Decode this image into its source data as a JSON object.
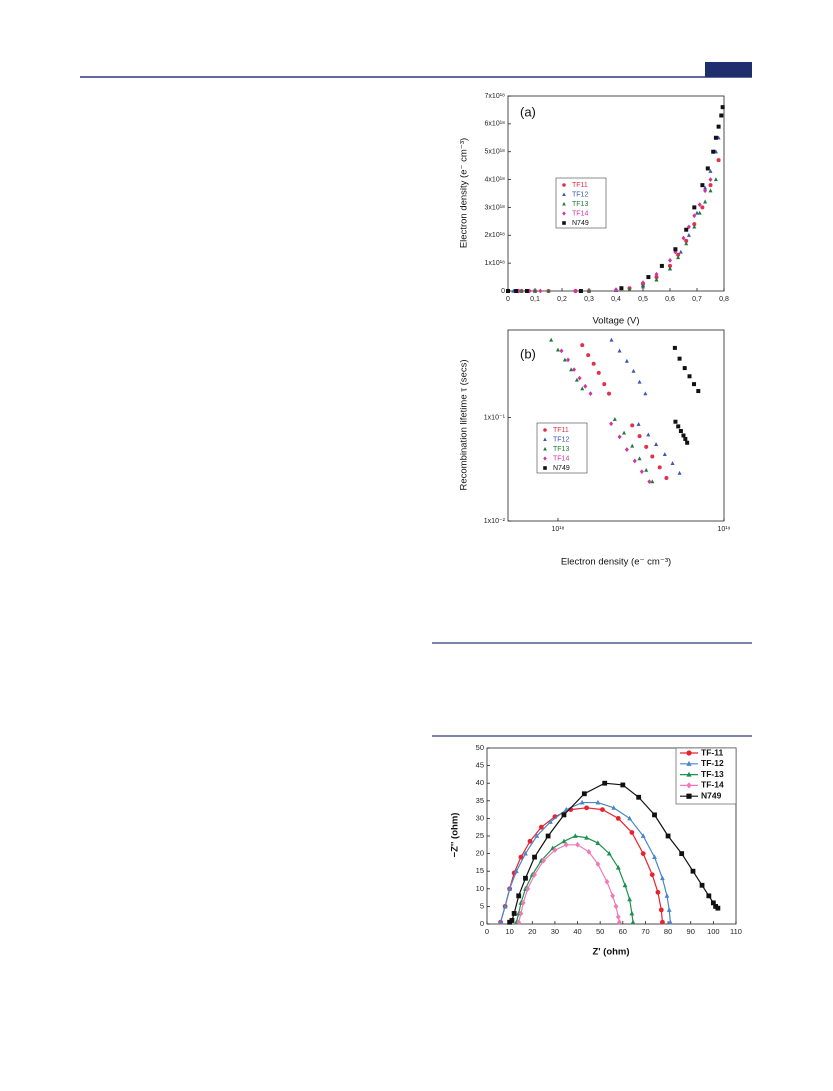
{
  "chart_data": [
    {
      "type": "scatter",
      "title": "(a)",
      "x_label": "Voltage (V)",
      "y_label": "Electron density (e⁻ cm⁻³)",
      "xlim": [
        0,
        0.8
      ],
      "ylim": [
        0,
        7e+18
      ],
      "xticks": [
        0,
        {
          "value": 0.1,
          "label": "0,1"
        },
        {
          "value": 0.2,
          "label": "0,2"
        },
        {
          "value": 0.3,
          "label": "0,3"
        },
        {
          "value": 0.4,
          "label": "0,4"
        },
        {
          "value": 0.5,
          "label": "0,5"
        },
        {
          "value": 0.6,
          "label": "0,6"
        },
        {
          "value": 0.7,
          "label": "0,7"
        },
        {
          "value": 0.8,
          "label": "0,8"
        }
      ],
      "yticks": [
        0,
        {
          "value": 1e+18,
          "label": "1x10¹⁸"
        },
        {
          "value": 2e+18,
          "label": "2x10¹⁸"
        },
        {
          "value": 3e+18,
          "label": "3x10¹⁸"
        },
        {
          "value": 4e+18,
          "label": "4x10¹⁸"
        },
        {
          "value": 5e+18,
          "label": "5x10¹⁸"
        },
        {
          "value": 6e+18,
          "label": "6x10¹⁸"
        },
        {
          "value": 7e+18,
          "label": "7x10¹⁸"
        }
      ],
      "series": [
        {
          "name": "TF11",
          "color": "#e0304a",
          "marker": "circle",
          "x": [
            0,
            0.05,
            0.1,
            0.15,
            0.25,
            0.3,
            0.45,
            0.5,
            0.55,
            0.6,
            0.63,
            0.66,
            0.69,
            0.72,
            0.75,
            0.78
          ],
          "values": [
            0,
            0,
            0,
            0,
            0,
            0,
            1e+17,
            2.5e+17,
            5e+17,
            9e+17,
            1.3e+18,
            1.8e+18,
            2.4e+18,
            3e+18,
            3.8e+18,
            4.7e+18
          ]
        },
        {
          "name": "TF12",
          "color": "#3a55b5",
          "marker": "triangle",
          "x": [
            0,
            0.02,
            0.05,
            0.1,
            0.3,
            0.4,
            0.5,
            0.55,
            0.6,
            0.64,
            0.67,
            0.7,
            0.73,
            0.75,
            0.77,
            0.78
          ],
          "values": [
            0,
            0,
            0,
            0,
            0,
            2e+16,
            1.5e+17,
            4e+17,
            8e+17,
            1.4e+18,
            2e+18,
            2.8e+18,
            3.7e+18,
            4.3e+18,
            5e+18,
            5.5e+18
          ]
        },
        {
          "name": "TF13",
          "color": "#1f7a3a",
          "marker": "triangle",
          "x": [
            0,
            0.05,
            0.1,
            0.15,
            0.3,
            0.45,
            0.5,
            0.55,
            0.6,
            0.63,
            0.66,
            0.69,
            0.71,
            0.73,
            0.75,
            0.77
          ],
          "values": [
            0,
            0,
            0,
            0,
            0,
            5e+16,
            2e+17,
            4e+17,
            8e+17,
            1.2e+18,
            1.7e+18,
            2.3e+18,
            2.8e+18,
            3.2e+18,
            3.6e+18,
            4e+18
          ]
        },
        {
          "name": "TF14",
          "color": "#d0359e",
          "marker": "diamond",
          "x": [
            0,
            0.04,
            0.08,
            0.12,
            0.25,
            0.4,
            0.5,
            0.55,
            0.6,
            0.62,
            0.65,
            0.67,
            0.69,
            0.71,
            0.73,
            0.75
          ],
          "values": [
            0,
            0,
            0,
            0,
            0,
            5e+16,
            3e+17,
            6e+17,
            1.1e+18,
            1.4e+18,
            1.9e+18,
            2.3e+18,
            2.7e+18,
            3.1e+18,
            3.6e+18,
            4e+18
          ]
        },
        {
          "name": "N749",
          "color": "#111111",
          "marker": "square",
          "x": [
            0,
            0.03,
            0.07,
            0.27,
            0.42,
            0.52,
            0.57,
            0.62,
            0.66,
            0.69,
            0.72,
            0.74,
            0.76,
            0.77,
            0.78,
            0.79,
            0.795
          ],
          "values": [
            0,
            0,
            0,
            0,
            1e+17,
            5e+17,
            9e+17,
            1.5e+18,
            2.2e+18,
            3e+18,
            3.8e+18,
            4.4e+18,
            5e+18,
            5.5e+18,
            5.9e+18,
            6.3e+18,
            6.6e+18
          ]
        }
      ]
    },
    {
      "type": "scatter",
      "title": "(b)",
      "x_label": "Electron density (e⁻ cm⁻³)",
      "y_label": "Recombination lifetime τ (secs)",
      "log_x": true,
      "log_y": true,
      "xlim": [
        5e+17,
        1e+19
      ],
      "ylim": [
        0.01,
        0.7
      ],
      "xticks": [
        {
          "value": 1e+18,
          "label": "10¹⁸"
        },
        {
          "value": 1e+19,
          "label": "10¹⁹"
        }
      ],
      "yticks": [
        {
          "value": 0.01,
          "label": "1x10⁻²"
        },
        {
          "value": 0.1,
          "label": "1x10⁻¹"
        }
      ],
      "series": [
        {
          "name": "TF11",
          "color": "#e0304a",
          "marker": "circle",
          "x": [
            1.4e+18,
            1.52e+18,
            1.64e+18,
            1.76e+18,
            1.9e+18,
            2.03e+18,
            2.8e+18,
            3.1e+18,
            3.4e+18,
            3.7e+18,
            4.1e+18,
            4.5e+18
          ],
          "values": [
            0.5,
            0.4,
            0.33,
            0.27,
            0.21,
            0.17,
            0.084,
            0.066,
            0.052,
            0.042,
            0.033,
            0.026
          ]
        },
        {
          "name": "TF12",
          "color": "#3a55b5",
          "marker": "triangle",
          "x": [
            2.1e+18,
            2.35e+18,
            2.6e+18,
            2.85e+18,
            3.1e+18,
            3.36e+18,
            3.06e+18,
            3.5e+18,
            3.9e+18,
            4.4e+18,
            4.9e+18,
            5.4e+18
          ],
          "values": [
            0.56,
            0.44,
            0.35,
            0.28,
            0.22,
            0.17,
            0.086,
            0.068,
            0.055,
            0.044,
            0.036,
            0.029
          ]
        },
        {
          "name": "TF13",
          "color": "#1f7a3a",
          "marker": "triangle",
          "x": [
            9.1e+17,
            1e+18,
            1.1e+18,
            1.2e+18,
            1.3e+18,
            1.4e+18,
            2.2e+18,
            2.5e+18,
            2.8e+18,
            3.1e+18,
            3.4e+18,
            3.7e+18
          ],
          "values": [
            0.56,
            0.45,
            0.36,
            0.29,
            0.23,
            0.19,
            0.096,
            0.071,
            0.053,
            0.04,
            0.031,
            0.024
          ]
        },
        {
          "name": "TF14",
          "color": "#d0359e",
          "marker": "diamond",
          "x": [
            1.05e+18,
            1.15e+18,
            1.25e+18,
            1.35e+18,
            1.46e+18,
            1.57e+18,
            2.09e+18,
            2.35e+18,
            2.6e+18,
            2.9e+18,
            3.2e+18,
            3.55e+18
          ],
          "values": [
            0.44,
            0.36,
            0.29,
            0.24,
            0.2,
            0.17,
            0.087,
            0.065,
            0.049,
            0.038,
            0.03,
            0.024
          ]
        },
        {
          "name": "N749",
          "color": "#111111",
          "marker": "square",
          "x": [
            5.06e+18,
            5.4e+18,
            5.8e+18,
            6.2e+18,
            6.6e+18,
            7e+18,
            5.1e+18,
            5.3e+18,
            5.5e+18,
            5.7e+18,
            5.85e+18,
            6e+18
          ],
          "values": [
            0.47,
            0.37,
            0.3,
            0.25,
            0.21,
            0.18,
            0.091,
            0.082,
            0.074,
            0.067,
            0.062,
            0.057
          ]
        }
      ]
    },
    {
      "type": "line",
      "x_label": "Z' (ohm)",
      "y_label": "−Z'' (ohm)",
      "xlim": [
        0,
        110
      ],
      "ylim": [
        0,
        50
      ],
      "xticks": [
        0,
        10,
        20,
        30,
        40,
        50,
        60,
        70,
        80,
        90,
        100,
        110
      ],
      "yticks": [
        0,
        5,
        10,
        15,
        20,
        25,
        30,
        35,
        40,
        45,
        50
      ],
      "series": [
        {
          "name": "TF-11",
          "color": "#e8232f",
          "marker": "circle",
          "x": [
            6,
            8,
            10,
            12,
            15,
            19,
            24,
            30,
            37,
            44,
            51,
            58,
            64,
            69,
            73,
            75.5,
            77,
            77.5
          ],
          "values": [
            0.5,
            5,
            10,
            14.5,
            19,
            23.5,
            27.5,
            30.5,
            32.5,
            33,
            32.5,
            30,
            26,
            20,
            14,
            9,
            4,
            0.5
          ]
        },
        {
          "name": "TF-12",
          "color": "#4a86c8",
          "marker": "triangle",
          "x": [
            6,
            8,
            10,
            13,
            17,
            22,
            28,
            35,
            42,
            49,
            56,
            63,
            69,
            74,
            77.5,
            79.5,
            80.5,
            81
          ],
          "values": [
            0.5,
            5,
            10,
            15,
            20,
            25,
            29,
            32.5,
            34.5,
            34.5,
            33,
            30,
            25,
            19,
            13,
            8,
            4,
            0.5
          ]
        },
        {
          "name": "TF-13",
          "color": "#1e8f4e",
          "marker": "triangle",
          "x": [
            13,
            14,
            15,
            17,
            20,
            24,
            29,
            34,
            39,
            44,
            49,
            54,
            58,
            61,
            63,
            64,
            64.5
          ],
          "values": [
            0.5,
            3,
            6,
            10,
            14,
            18,
            21.5,
            23.5,
            25,
            24.5,
            23,
            20,
            16,
            11,
            7,
            3,
            0.5
          ]
        },
        {
          "name": "TF-14",
          "color": "#f07ab8",
          "marker": "diamond",
          "x": [
            14,
            15,
            16,
            18,
            21,
            25,
            30,
            35,
            40,
            45,
            49,
            53,
            55.5,
            57,
            58,
            58.5
          ],
          "values": [
            0.5,
            3,
            6,
            10,
            14,
            18,
            21,
            22.5,
            22.5,
            20.5,
            17,
            12,
            8,
            5,
            2,
            0.5
          ]
        },
        {
          "name": "N749",
          "color": "#111111",
          "marker": "square",
          "x": [
            10,
            11,
            12,
            14,
            17,
            21,
            27,
            34,
            43,
            52,
            60,
            67,
            74,
            80,
            86,
            91,
            95,
            98,
            100,
            101,
            102
          ],
          "values": [
            0.5,
            1,
            3,
            8,
            13,
            19,
            25,
            31,
            37,
            40,
            39.5,
            36,
            31,
            25,
            20,
            15,
            11,
            8,
            6,
            5,
            4.5
          ]
        }
      ]
    }
  ]
}
